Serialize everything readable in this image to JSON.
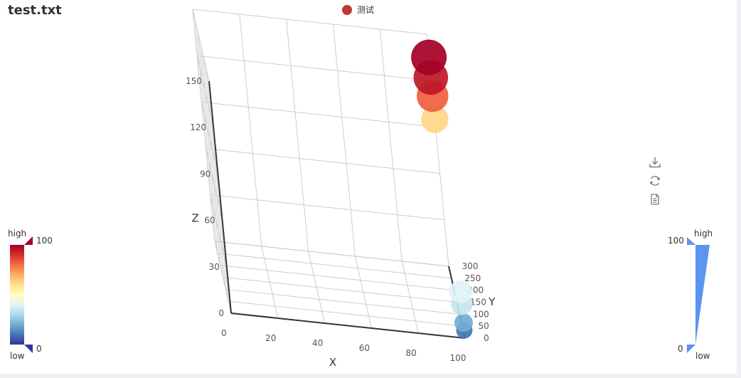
{
  "title": "test.txt",
  "legend": {
    "label": "测试",
    "color": "#c23531"
  },
  "toolbox": {
    "icons": [
      "download-icon",
      "refresh-icon",
      "data-view-icon"
    ]
  },
  "chart_data": {
    "type": "scatter",
    "series": [
      {
        "name": "测试",
        "points": [
          {
            "x": 100,
            "y": 300,
            "z": 135,
            "value": 100
          },
          {
            "x": 100,
            "y": 300,
            "z": 122,
            "value": 95
          },
          {
            "x": 100,
            "y": 300,
            "z": 110,
            "value": 82
          },
          {
            "x": 100,
            "y": 300,
            "z": 95,
            "value": 62
          },
          {
            "x": 100,
            "y": 0,
            "z": 30,
            "value": 40
          },
          {
            "x": 100,
            "y": 0,
            "z": 22,
            "value": 35
          },
          {
            "x": 100,
            "y": 0,
            "z": 10,
            "value": 20
          },
          {
            "x": 100,
            "y": 0,
            "z": 5,
            "value": 10
          }
        ]
      }
    ],
    "xlabel": "X",
    "ylabel": "Y",
    "zlabel": "Z",
    "x_ticks": [
      "0",
      "20",
      "40",
      "60",
      "80",
      "100"
    ],
    "y_ticks": [
      "0",
      "50",
      "100",
      "150",
      "200",
      "250",
      "300"
    ],
    "z_ticks": [
      "0",
      "30",
      "60",
      "90",
      "120",
      "150"
    ],
    "xlim": [
      0,
      100
    ],
    "ylim": [
      0,
      300
    ],
    "zlim": [
      0,
      150
    ],
    "grid": true,
    "legend_position": "top-center"
  },
  "visual_map_color": {
    "min": "0",
    "max": "100",
    "high_text": "high",
    "low_text": "low",
    "colors": [
      "#313695",
      "#4575b4",
      "#74add1",
      "#abd9e9",
      "#e0f3f8",
      "#ffffbf",
      "#fee090",
      "#fdae61",
      "#f46d43",
      "#d73027",
      "#a50026"
    ]
  },
  "visual_map_size": {
    "min": "0",
    "max": "100",
    "high_text": "high",
    "low_text": "low",
    "color": "#5b95ef"
  }
}
